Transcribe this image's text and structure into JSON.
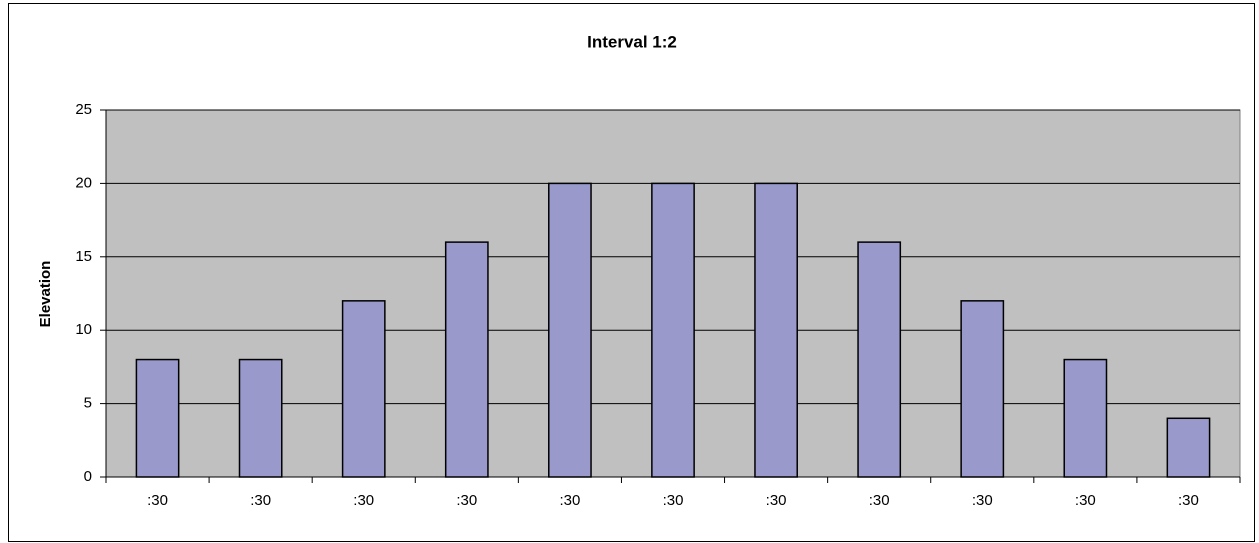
{
  "chart_data": {
    "type": "bar",
    "title": "Interval 1:2",
    "y_label": "Elevation",
    "categories": [
      ":30",
      ":30",
      ":30",
      ":30",
      ":30",
      ":30",
      ":30",
      ":30",
      ":30",
      ":30",
      ":30"
    ],
    "values": [
      8,
      8,
      12,
      16,
      20,
      20,
      20,
      16,
      12,
      8,
      4
    ],
    "color": "#9999cc",
    "plot_background": "#c0c0c0",
    "ylim": [
      0,
      25
    ],
    "yticks": [
      0,
      5,
      10,
      15,
      20,
      25
    ],
    "grid": true
  }
}
